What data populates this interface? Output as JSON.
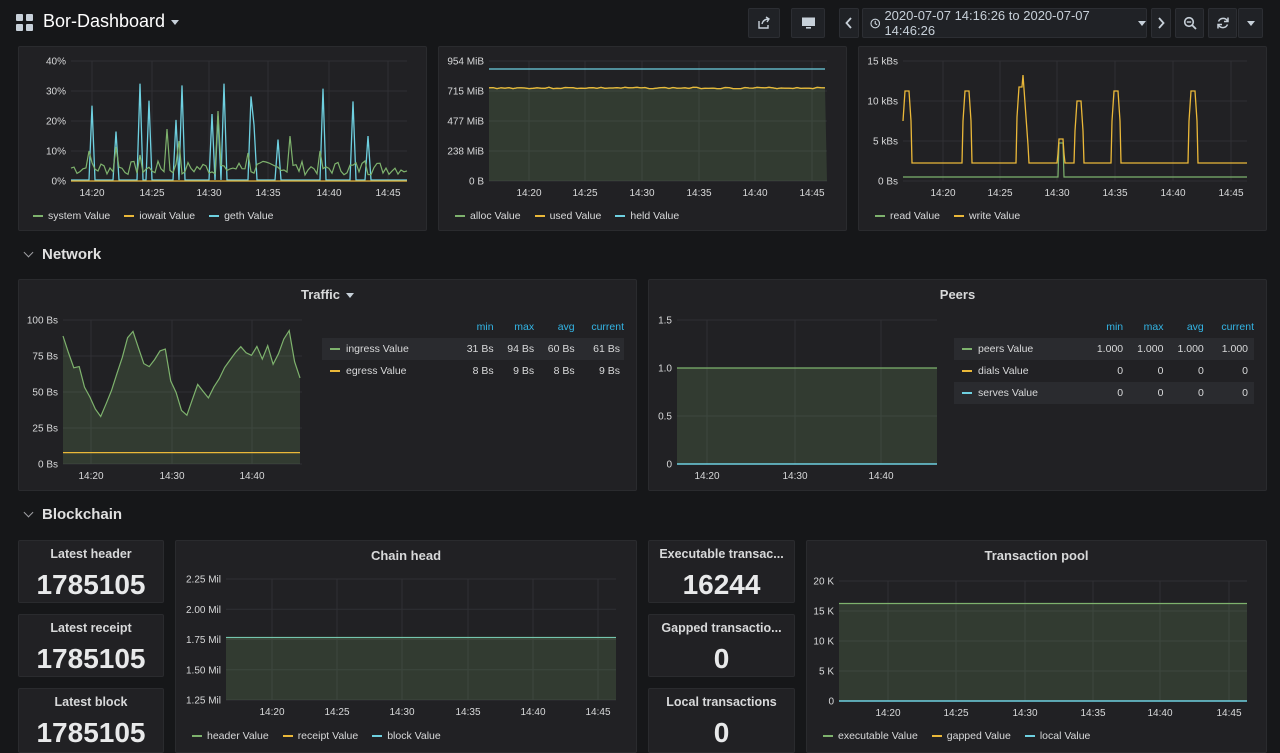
{
  "dashboard": {
    "title": "Bor-Dashboard",
    "time_range": "2020-07-07 14:16:26 to 2020-07-07 14:46:26",
    "icons": [
      "share-icon",
      "tv-icon",
      "chevron-left-icon",
      "clock-icon",
      "chevron-right-icon",
      "zoom-out-icon",
      "refresh-icon",
      "caret-down-icon"
    ]
  },
  "rows": {
    "network": "Network",
    "blockchain": "Blockchain"
  },
  "colors": {
    "green": "#7eb26d",
    "yellow": "#eab839",
    "blue": "#6ed0e0",
    "header_blue": "#33b5e5"
  },
  "panels": {
    "cpu": {
      "y_ticks": [
        "40%",
        "30%",
        "20%",
        "10%",
        "0%"
      ],
      "x_ticks": [
        "14:20",
        "14:25",
        "14:30",
        "14:35",
        "14:40",
        "14:45"
      ],
      "legend": [
        "system Value",
        "iowait Value",
        "geth Value"
      ]
    },
    "memory": {
      "y_ticks": [
        "954 MiB",
        "715 MiB",
        "477 MiB",
        "238 MiB",
        "0 B"
      ],
      "x_ticks": [
        "14:20",
        "14:25",
        "14:30",
        "14:35",
        "14:40",
        "14:45"
      ],
      "legend": [
        "alloc Value",
        "used Value",
        "held Value"
      ]
    },
    "disk": {
      "y_ticks": [
        "15 kBs",
        "10 kBs",
        "5 kBs",
        "0 Bs"
      ],
      "x_ticks": [
        "14:20",
        "14:25",
        "14:30",
        "14:35",
        "14:40",
        "14:45"
      ],
      "legend": [
        "read Value",
        "write Value"
      ]
    },
    "traffic": {
      "title": "Traffic",
      "y_ticks": [
        "100 Bs",
        "75 Bs",
        "50 Bs",
        "25 Bs",
        "0 Bs"
      ],
      "x_ticks": [
        "14:20",
        "14:30",
        "14:40"
      ],
      "columns": [
        "min",
        "max",
        "avg",
        "current"
      ],
      "rows": [
        {
          "name": "ingress Value",
          "min": "31 Bs",
          "max": "94 Bs",
          "avg": "60 Bs",
          "current": "61 Bs"
        },
        {
          "name": "egress Value",
          "min": "8 Bs",
          "max": "9 Bs",
          "avg": "8 Bs",
          "current": "9 Bs"
        }
      ]
    },
    "peers": {
      "title": "Peers",
      "y_ticks": [
        "1.5",
        "1.0",
        "0.5",
        "0"
      ],
      "x_ticks": [
        "14:20",
        "14:30",
        "14:40"
      ],
      "columns": [
        "min",
        "max",
        "avg",
        "current"
      ],
      "rows": [
        {
          "name": "peers Value",
          "min": "1.000",
          "max": "1.000",
          "avg": "1.000",
          "current": "1.000"
        },
        {
          "name": "dials Value",
          "min": "0",
          "max": "0",
          "avg": "0",
          "current": "0"
        },
        {
          "name": "serves Value",
          "min": "0",
          "max": "0",
          "avg": "0",
          "current": "0"
        }
      ]
    },
    "latest_header": {
      "title": "Latest header",
      "value": "1785105"
    },
    "latest_receipt": {
      "title": "Latest receipt",
      "value": "1785105"
    },
    "latest_block": {
      "title": "Latest block",
      "value": "1785105"
    },
    "chain_head": {
      "title": "Chain head",
      "y_ticks": [
        "2.25 Mil",
        "2.00 Mil",
        "1.75 Mil",
        "1.50 Mil",
        "1.25 Mil"
      ],
      "x_ticks": [
        "14:20",
        "14:25",
        "14:30",
        "14:35",
        "14:40",
        "14:45"
      ],
      "legend": [
        "header Value",
        "receipt Value",
        "block Value"
      ]
    },
    "exec_tx": {
      "title": "Executable transac...",
      "value": "16244"
    },
    "gapped_tx": {
      "title": "Gapped transactio...",
      "value": "0"
    },
    "local_tx": {
      "title": "Local transactions",
      "value": "0"
    },
    "tx_pool": {
      "title": "Transaction pool",
      "y_ticks": [
        "20 K",
        "15 K",
        "10 K",
        "5 K",
        "0"
      ],
      "x_ticks": [
        "14:20",
        "14:25",
        "14:30",
        "14:35",
        "14:40",
        "14:45"
      ],
      "legend": [
        "executable Value",
        "gapped Value",
        "local Value"
      ]
    }
  }
}
